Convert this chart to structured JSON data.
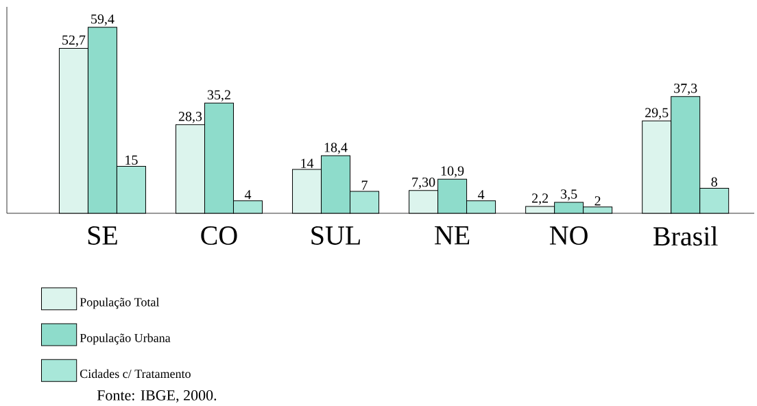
{
  "chart_data": {
    "type": "bar",
    "categories": [
      "SE",
      "CO",
      "SUL",
      "NE",
      "NO",
      "Brasil"
    ],
    "legend": "bottom left",
    "annotations": [
      "Fonte: IBGE, 2000."
    ],
    "series": [
      {
        "name": "População Total",
        "color": "#dcf4ed",
        "values": [
          52.7,
          28.3,
          14,
          7.3,
          2.2,
          29.5
        ],
        "value_labels": [
          "52,7",
          "28,3",
          "14",
          "7,30",
          "2,2",
          "29,5"
        ]
      },
      {
        "name": "População Urbana",
        "color": "#8edccb",
        "values": [
          59.4,
          35.2,
          18.4,
          10.9,
          3.5,
          37.3
        ],
        "value_labels": [
          "59,4",
          "35,2",
          "18,4",
          "10,9",
          "3,5",
          "37,3"
        ]
      },
      {
        "name": "Cidades c/ Tratamento",
        "color": "#a8e7d9",
        "values": [
          15,
          4,
          7,
          4,
          2,
          8
        ],
        "value_labels": [
          "15",
          "4",
          "7",
          "4",
          "2",
          "8"
        ]
      }
    ]
  }
}
